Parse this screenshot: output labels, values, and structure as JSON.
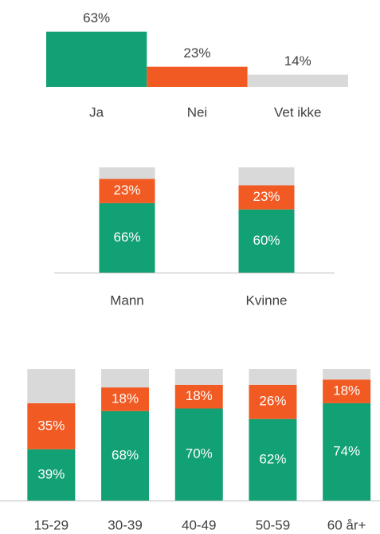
{
  "chart_data": [
    {
      "type": "bar",
      "categories": [
        "Ja",
        "Nei",
        "Vet ikke"
      ],
      "values": [
        63,
        23,
        14
      ],
      "value_labels": [
        "63%",
        "23%",
        "14%"
      ],
      "colors": [
        "#12a075",
        "#f15a22",
        "#d9d9d9"
      ]
    },
    {
      "type": "stacked_bar",
      "categories": [
        "Mann",
        "Kvinne"
      ],
      "series": [
        {
          "color": "#12a075",
          "values": [
            66,
            60
          ],
          "value_labels": [
            "66%",
            "60%"
          ]
        },
        {
          "color": "#f15a22",
          "values": [
            23,
            23
          ],
          "value_labels": [
            "23%",
            "23%"
          ]
        },
        {
          "color": "#d9d9d9",
          "values": [
            11,
            17
          ]
        }
      ]
    },
    {
      "type": "stacked_bar",
      "categories": [
        "15-29",
        "30-39",
        "40-49",
        "50-59",
        "60 år+"
      ],
      "series": [
        {
          "color": "#12a075",
          "values": [
            39,
            68,
            70,
            62,
            74
          ],
          "value_labels": [
            "39%",
            "68%",
            "70%",
            "62%",
            "74%"
          ]
        },
        {
          "color": "#f15a22",
          "values": [
            35,
            18,
            18,
            26,
            18
          ],
          "value_labels": [
            "35%",
            "18%",
            "18%",
            "26%",
            "18%"
          ]
        },
        {
          "color": "#d9d9d9",
          "values": [
            26,
            14,
            12,
            12,
            8
          ]
        }
      ]
    }
  ]
}
